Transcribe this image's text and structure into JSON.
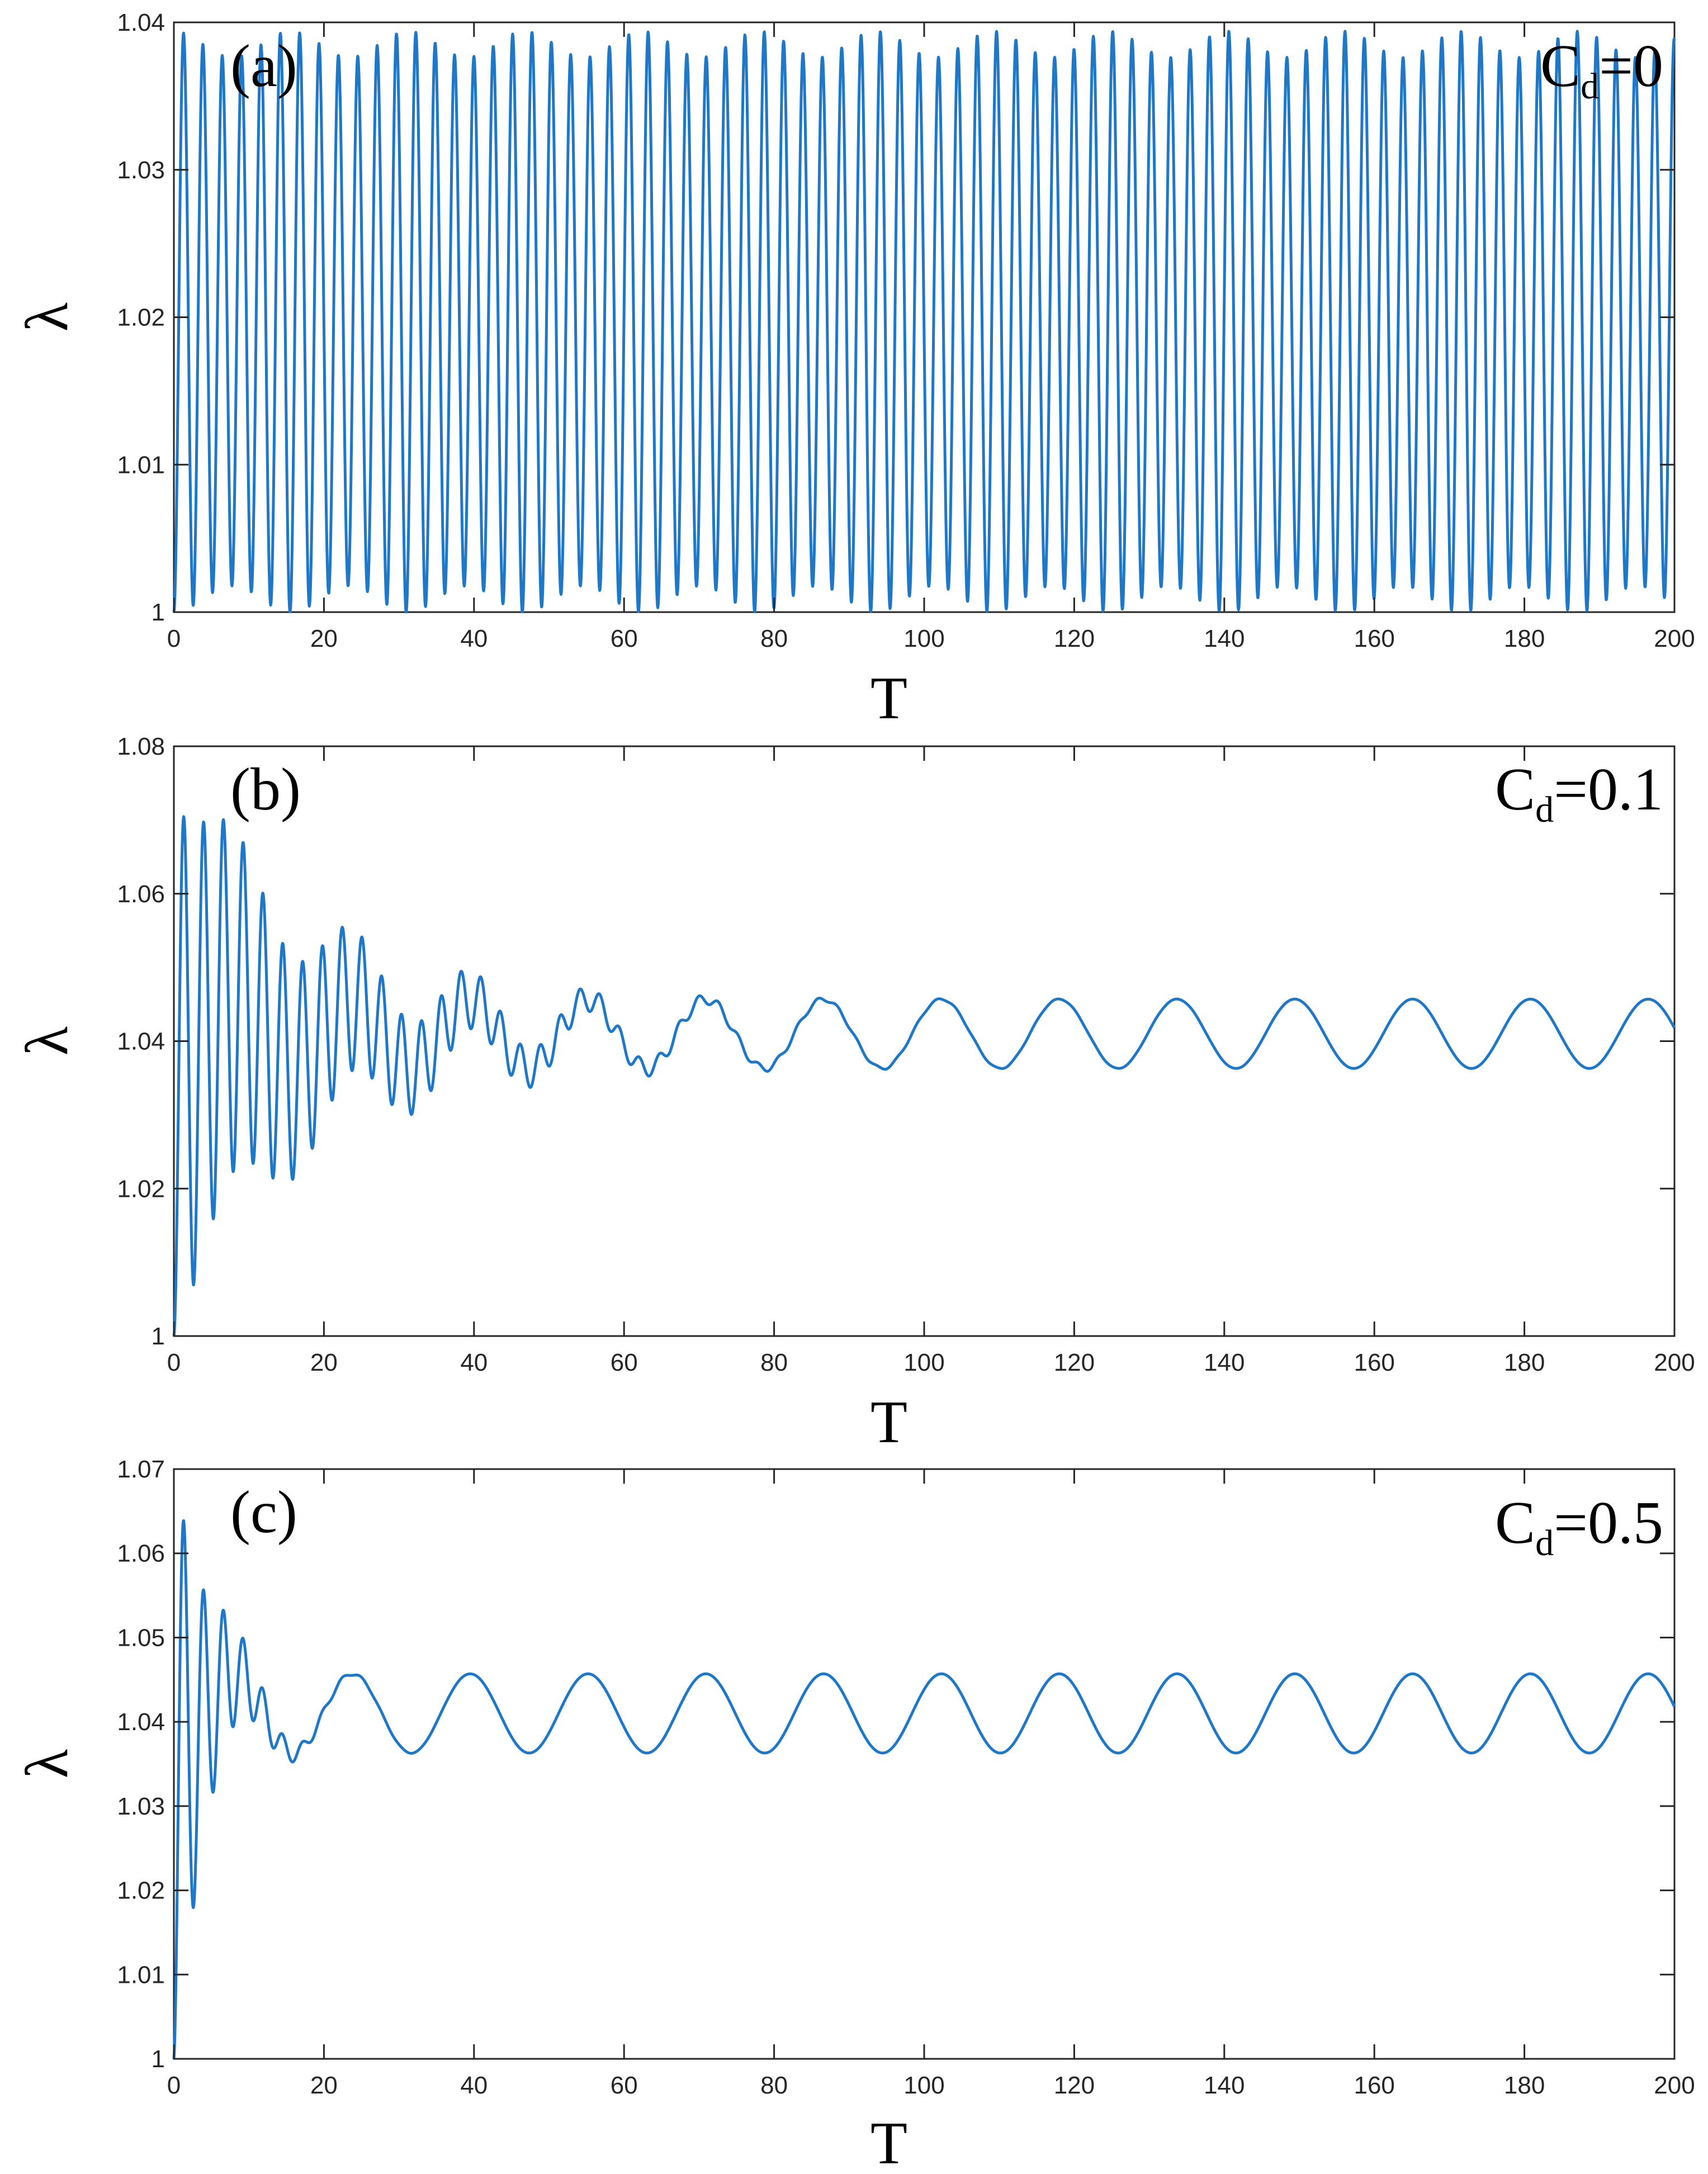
{
  "chart_data": [
    {
      "type": "line",
      "panel_label": "(a)",
      "annotation": {
        "main": "C",
        "sub": "d",
        "rest": "=0"
      },
      "xlabel": "T",
      "ylabel": "λ",
      "xlim": [
        0,
        200
      ],
      "ylim": [
        1,
        1.04
      ],
      "xticks": [
        0,
        20,
        40,
        60,
        80,
        100,
        120,
        140,
        160,
        180,
        200
      ],
      "yticks": [
        1,
        1.01,
        1.02,
        1.03,
        1.04
      ],
      "ytick_labels": [
        "1",
        "1.01",
        "1.02",
        "1.03",
        "1.04"
      ],
      "grid": false,
      "color": "#1f77c8",
      "series": [
        {
          "x_range": [
            0,
            200
          ],
          "description_values": {
            "offset": 1.0197,
            "fast_amplitude": 0.0197,
            "fast_period": 2.58,
            "slow_period": 15.6,
            "start_value": 1.0
          }
        }
      ]
    },
    {
      "type": "line",
      "panel_label": "(b)",
      "annotation": {
        "main": "C",
        "sub": "d",
        "rest": "=0.1"
      },
      "xlabel": "T",
      "ylabel": "λ",
      "xlim": [
        0,
        200
      ],
      "ylim": [
        1,
        1.08
      ],
      "xticks": [
        0,
        20,
        40,
        60,
        80,
        100,
        120,
        140,
        160,
        180,
        200
      ],
      "yticks": [
        1,
        1.02,
        1.04,
        1.06,
        1.08
      ],
      "ytick_labels": [
        "1",
        "1.02",
        "1.04",
        "1.06",
        "1.08"
      ],
      "grid": false,
      "color": "#1f77c8",
      "series": [
        {
          "x_range": [
            0,
            200
          ],
          "description_values": {
            "equilibrium": 1.041,
            "steady_amplitude": 0.0047,
            "steady_period": 15.7,
            "steady_phase_peak_T": 23.8,
            "transient_amplitude": 0.036,
            "transient_period": 2.64,
            "transient_decay_time": 18,
            "start_value": 1.0
          }
        }
      ]
    },
    {
      "type": "line",
      "panel_label": "(c)",
      "annotation": {
        "main": "C",
        "sub": "d",
        "rest": "=0.5"
      },
      "xlabel": "T",
      "ylabel": "λ",
      "xlim": [
        0,
        200
      ],
      "ylim": [
        1,
        1.07
      ],
      "xticks": [
        0,
        20,
        40,
        60,
        80,
        100,
        120,
        140,
        160,
        180,
        200
      ],
      "yticks": [
        1,
        1.01,
        1.02,
        1.03,
        1.04,
        1.05,
        1.06,
        1.07
      ],
      "ytick_labels": [
        "1",
        "1.01",
        "1.02",
        "1.03",
        "1.04",
        "1.05",
        "1.06",
        "1.07"
      ],
      "grid": false,
      "color": "#1f77c8",
      "series": [
        {
          "x_range": [
            0,
            200
          ],
          "description_values": {
            "equilibrium": 1.041,
            "steady_amplitude": 0.0047,
            "steady_period": 15.7,
            "steady_phase_peak_T": 23.8,
            "transient_amplitude": 0.027,
            "transient_period": 2.64,
            "transient_decay_time": 4.5,
            "start_value": 1.0
          }
        }
      ]
    }
  ]
}
